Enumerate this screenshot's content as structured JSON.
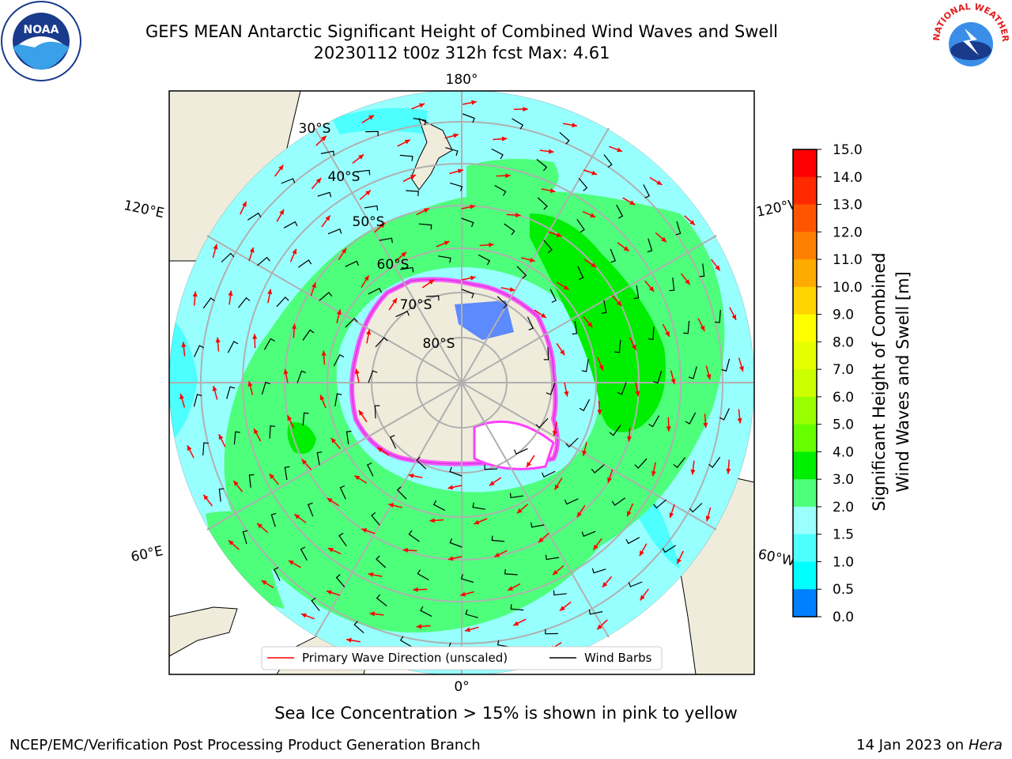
{
  "header": {
    "title_line1": "GEFS MEAN Antarctic Significant Height of Combined Wind Waves and Swell",
    "title_line2": "20230112 t00z 312h fcst   Max: 4.61"
  },
  "logos": {
    "left_text": "NOAA",
    "right_text": "NATIONAL WEATHER SERVICE"
  },
  "map": {
    "longitude_labels": {
      "top": "180°",
      "bottom": "0°",
      "left_upper": "120°E",
      "left_lower": "60°E",
      "right_upper": "120°W",
      "right_lower": "60°W"
    },
    "latitude_labels": [
      "30°S",
      "40°S",
      "50°S",
      "60°S",
      "70°S",
      "80°S"
    ],
    "legend": {
      "wave_label": "Primary Wave Direction (unscaled)",
      "wind_label": "Wind Barbs"
    },
    "colors": {
      "land": "#efecdc",
      "ocean_low": "#98ffff",
      "ocean_mid": "#4dff4d",
      "ocean_high": "#00e600",
      "arrow": "#ff0000",
      "ice": "#ff40ff"
    }
  },
  "colorbar": {
    "title_line1": "Significant Height of Combined",
    "title_line2": "Wind Waves and Swell [m]",
    "ticks": [
      "15.0",
      "14.0",
      "13.0",
      "12.0",
      "11.0",
      "10.0",
      "9.0",
      "8.0",
      "7.0",
      "6.0",
      "5.0",
      "4.0",
      "3.0",
      "2.0",
      "1.5",
      "1.0",
      "0.5",
      "0.0"
    ],
    "colors": [
      "#ff0000",
      "#ff2a00",
      "#ff5500",
      "#ff8000",
      "#ffaa00",
      "#ffd400",
      "#ffff00",
      "#e6ff00",
      "#ccff00",
      "#99ff00",
      "#66ff00",
      "#00ee00",
      "#4dff7a",
      "#99ffff",
      "#4dffff",
      "#00ffff",
      "#0080ff",
      "#0000ff"
    ]
  },
  "caption": "Sea Ice Concentration > 15% is shown in pink to yellow",
  "footer": {
    "left": "NCEP/EMC/Verification Post Processing Product Generation Branch",
    "right_date": "14 Jan 2023 on ",
    "right_host": "Hera"
  }
}
